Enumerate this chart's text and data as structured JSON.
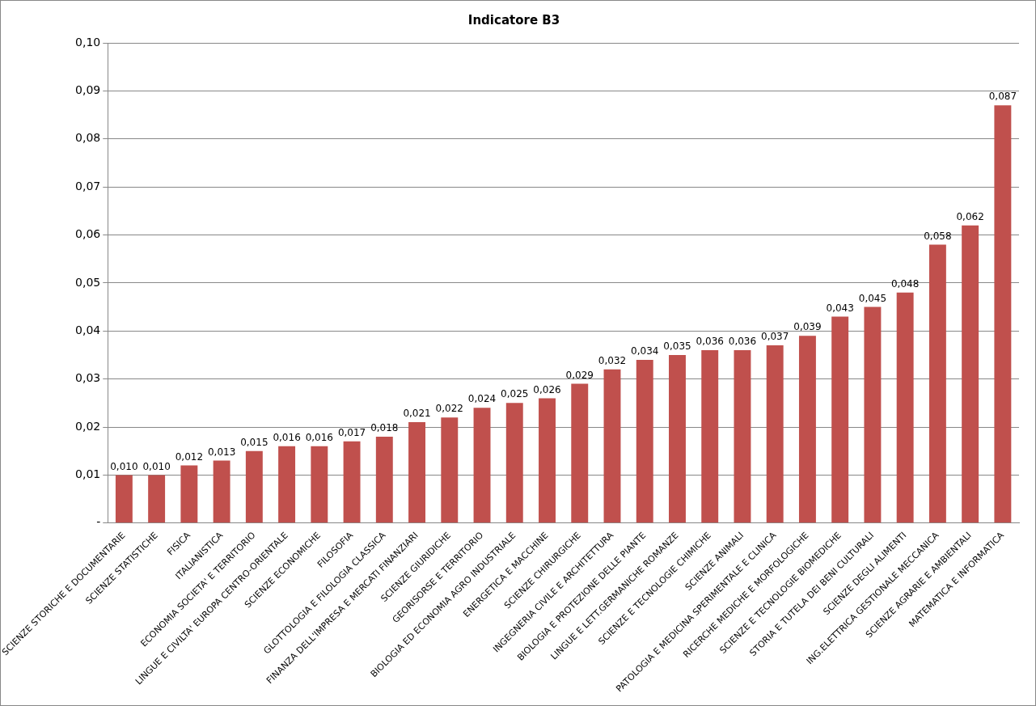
{
  "chart_data": {
    "type": "bar",
    "title": "Indicatore B3",
    "categories": [
      "SCIENZE STORICHE E DOCUMENTARIE",
      "SCIENZE STATISTICHE",
      "FISICA",
      "ITALIANISTICA",
      "ECONOMIA SOCIETA' E TERRITORIO",
      "LINGUE E CIVILTA' EUROPA CENTRO-ORIENTALE",
      "SCIENZE ECONOMICHE",
      "FILOSOFIA",
      "GLOTTOLOGIA E FILOLOGIA CLASSICA",
      "FINANZA DELL'IMPRESA E MERCATI FINANZIARI",
      "SCIENZE GIURIDICHE",
      "GEORISORSE E TERRITORIO",
      "BIOLOGIA ED ECONOMIA AGRO INDUSTRIALE",
      "ENERGETICA E MACCHINE",
      "SCIENZE CHIRURGICHE",
      "INGEGNERIA CIVILE E ARCHITETTURA",
      "BIOLOGIA E PROTEZIONE DELLE PIANTE",
      "LINGUE E LETT.GERMANICHE ROMANZE",
      "SCIENZE E TECNOLOGIE CHIMICHE",
      "SCIENZE ANIMALI",
      "PATOLOGIA E MEDICINA SPERIMENTALE E CLINICA",
      "RICERCHE MEDICHE E MORFOLOGICHE",
      "SCIENZE E TECNOLOGIE BIOMEDICHE",
      "STORIA E TUTELA DEI BENI CULTURALI",
      "SCIENZE DEGLI ALIMENTI",
      "ING.ELETTRICA GESTIONALE MECCANICA",
      "SCIENZE AGRARIE E AMBIENTALI",
      "MATEMATICA E INFORMATICA"
    ],
    "values": [
      0.01,
      0.01,
      0.012,
      0.013,
      0.015,
      0.016,
      0.016,
      0.017,
      0.018,
      0.021,
      0.022,
      0.024,
      0.025,
      0.026,
      0.029,
      0.032,
      0.034,
      0.035,
      0.036,
      0.036,
      0.037,
      0.039,
      0.043,
      0.045,
      0.048,
      0.058,
      0.062,
      0.087
    ],
    "value_labels": [
      "0,010",
      "0,010",
      "0,012",
      "0,013",
      "0,015",
      "0,016",
      "0,016",
      "0,017",
      "0,018",
      "0,021",
      "0,022",
      "0,024",
      "0,025",
      "0,026",
      "0,029",
      "0,032",
      "0,034",
      "0,035",
      "0,036",
      "0,036",
      "0,037",
      "0,039",
      "0,043",
      "0,045",
      "0,048",
      "0,058",
      "0,062",
      "0,087"
    ],
    "color": "#c0504d",
    "ylim": [
      0,
      0.1
    ],
    "yticks": [
      {
        "value": 0,
        "label": "-"
      },
      {
        "value": 0.01,
        "label": "0,01"
      },
      {
        "value": 0.02,
        "label": "0,02"
      },
      {
        "value": 0.03,
        "label": "0,03"
      },
      {
        "value": 0.04,
        "label": "0,04"
      },
      {
        "value": 0.05,
        "label": "0,05"
      },
      {
        "value": 0.06,
        "label": "0,06"
      },
      {
        "value": 0.07,
        "label": "0,07"
      },
      {
        "value": 0.08,
        "label": "0,08"
      },
      {
        "value": 0.09,
        "label": "0,09"
      },
      {
        "value": 0.1,
        "label": "0,10"
      }
    ],
    "grid": "y",
    "legend": false
  }
}
